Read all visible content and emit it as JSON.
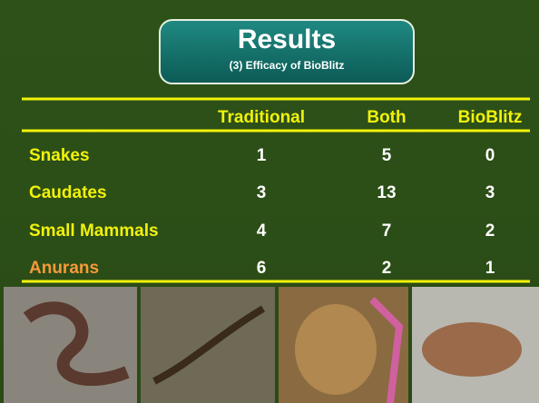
{
  "header": {
    "title": "Results",
    "subtitle": "(3) Efficacy of BioBlitz"
  },
  "table": {
    "columns": [
      "Traditional",
      "Both",
      "BioBlitz"
    ],
    "rows": [
      {
        "label": "Snakes",
        "values": [
          1,
          5,
          0
        ]
      },
      {
        "label": "Caudates",
        "values": [
          3,
          13,
          3
        ]
      },
      {
        "label": "Small Mammals",
        "values": [
          4,
          7,
          2
        ]
      },
      {
        "label": "Anurans",
        "values": [
          6,
          2,
          1
        ]
      }
    ]
  }
}
